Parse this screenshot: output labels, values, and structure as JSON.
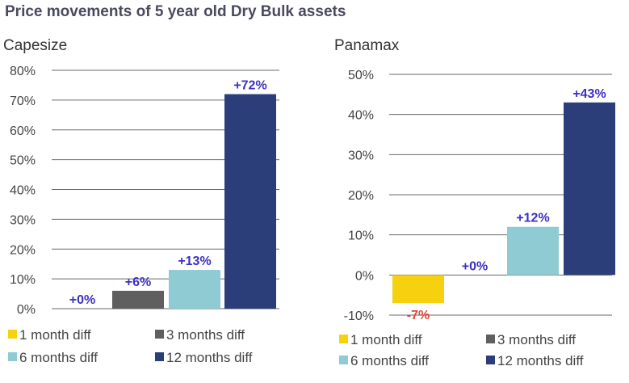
{
  "title": "Price movements of 5 year old Dry Bulk assets",
  "colors": {
    "1 month diff": "#f5d10f",
    "3 months diff": "#5f5f5f",
    "6 months diff": "#8ecbd3",
    "12 months diff": "#2c3e7a",
    "positive_label": "#3b30c4",
    "negative_label": "#e0463a"
  },
  "chart_data": [
    {
      "type": "bar",
      "title": "Capesize",
      "categories": [
        "1 month diff",
        "3 months diff",
        "6 months diff",
        "12 months diff"
      ],
      "values": [
        0,
        6,
        13,
        72
      ],
      "data_labels": [
        "+0%",
        "+6%",
        "+13%",
        "+72%"
      ],
      "yticks": [
        "0%",
        "10%",
        "20%",
        "30%",
        "40%",
        "50%",
        "60%",
        "70%",
        "80%"
      ],
      "ylim": [
        0,
        80
      ],
      "grid": true,
      "legend": "bottom"
    },
    {
      "type": "bar",
      "title": "Panamax",
      "categories": [
        "1 month diff",
        "3 months diff",
        "6 months diff",
        "12 months diff"
      ],
      "values": [
        -7,
        0,
        12,
        43
      ],
      "data_labels": [
        "-7%",
        "+0%",
        "+12%",
        "+43%"
      ],
      "yticks": [
        "-10%",
        "0%",
        "10%",
        "20%",
        "30%",
        "40%",
        "50%"
      ],
      "ylim": [
        -10,
        50
      ],
      "grid": true,
      "legend": "bottom"
    }
  ]
}
